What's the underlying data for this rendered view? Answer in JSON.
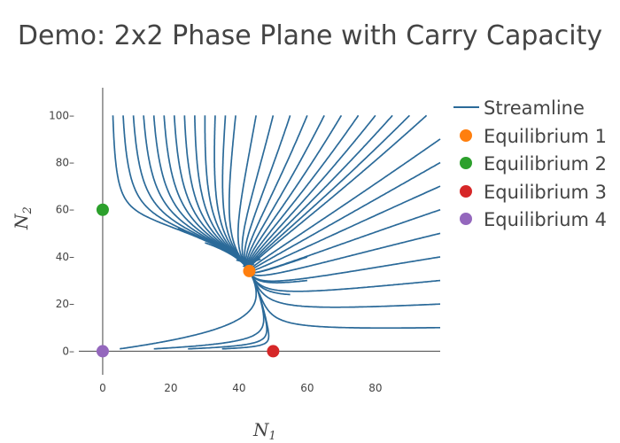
{
  "chart_data": {
    "type": "scatter",
    "title": "Demo: 2x2 Phase Plane with Carry Capacity",
    "xlabel": "N",
    "xlabel_sub": "1",
    "ylabel": "N",
    "ylabel_sub": "2",
    "xlim": [
      -7,
      99
    ],
    "ylim": [
      -10,
      105
    ],
    "xticks": [
      0,
      20,
      40,
      60,
      80
    ],
    "yticks": [
      0,
      20,
      40,
      60,
      80,
      100
    ],
    "grid": false,
    "legend_position": "right",
    "colors": {
      "streamline": "#2b6a99",
      "eq1": "#ff7f0e",
      "eq2": "#2ca02c",
      "eq3": "#d62728",
      "eq4": "#9467bd"
    },
    "series": [
      {
        "name": "Streamline",
        "type": "lines"
      },
      {
        "name": "Equilibrium 1",
        "x": [
          43
        ],
        "y": [
          34
        ]
      },
      {
        "name": "Equilibrium 2",
        "x": [
          0
        ],
        "y": [
          60
        ]
      },
      {
        "name": "Equilibrium 3",
        "x": [
          50
        ],
        "y": [
          0
        ]
      },
      {
        "name": "Equilibrium 4",
        "x": [
          0
        ],
        "y": [
          0
        ]
      }
    ]
  }
}
